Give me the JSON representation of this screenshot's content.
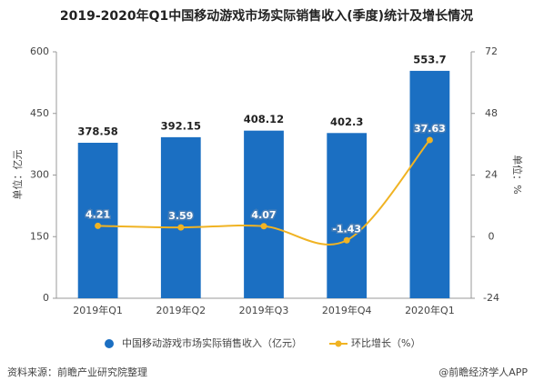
{
  "chart_data": {
    "type": "bar",
    "title": "2019-2020年Q1中国移动游戏市场实际销售收入(季度)统计及增长情况",
    "ylabel": "单位：亿元",
    "y2label": "单位：%",
    "categories": [
      "2019年Q1",
      "2019年Q2",
      "2019年Q3",
      "2019年Q4",
      "2020年Q1"
    ],
    "series": [
      {
        "name": "中国移动游戏市场实际销售收入（亿元）",
        "type": "bar",
        "color": "#1b6fc2",
        "values": [
          378.58,
          392.15,
          408.12,
          402.3,
          553.7
        ]
      },
      {
        "name": "环比增长（%）",
        "type": "line",
        "axis": "y2",
        "color": "#f0b323",
        "values": [
          4.21,
          3.59,
          4.07,
          -1.43,
          37.63
        ]
      }
    ],
    "ylim": [
      0,
      600
    ],
    "yticks": [
      0,
      150,
      300,
      450,
      600
    ],
    "y2lim": [
      -24,
      72
    ],
    "y2ticks": [
      -24,
      0,
      24,
      48,
      72
    ],
    "legend": "bottom",
    "source": "资料来源：前瞻产业研究院整理",
    "credit": "@前瞻经济学人APP"
  }
}
